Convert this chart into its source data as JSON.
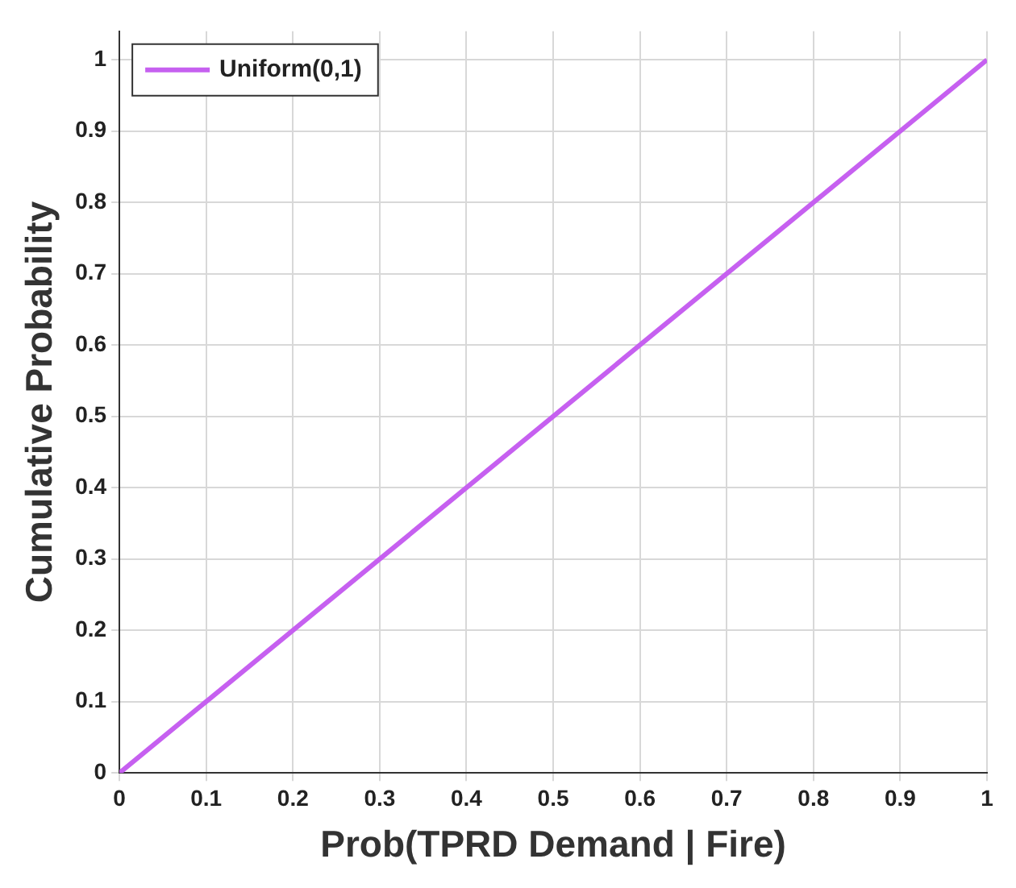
{
  "chart_data": {
    "type": "line",
    "xlabel": "Prob(TPRD Demand | Fire)",
    "ylabel": "Cumulative Probability",
    "x": [
      0,
      1
    ],
    "series": [
      {
        "name": "Uniform(0,1)",
        "color": "#c660f0",
        "values": [
          0,
          1
        ]
      }
    ],
    "xlim": [
      0,
      1
    ],
    "ylim": [
      0,
      1.04
    ],
    "xticks": [
      0,
      0.1,
      0.2,
      0.3,
      0.4,
      0.5,
      0.6,
      0.7,
      0.8,
      0.9,
      1
    ],
    "yticks": [
      0,
      0.1,
      0.2,
      0.3,
      0.4,
      0.5,
      0.6,
      0.7,
      0.8,
      0.9,
      1
    ],
    "grid": true,
    "legend": "top left",
    "marker": "none",
    "line_style": "solid"
  }
}
